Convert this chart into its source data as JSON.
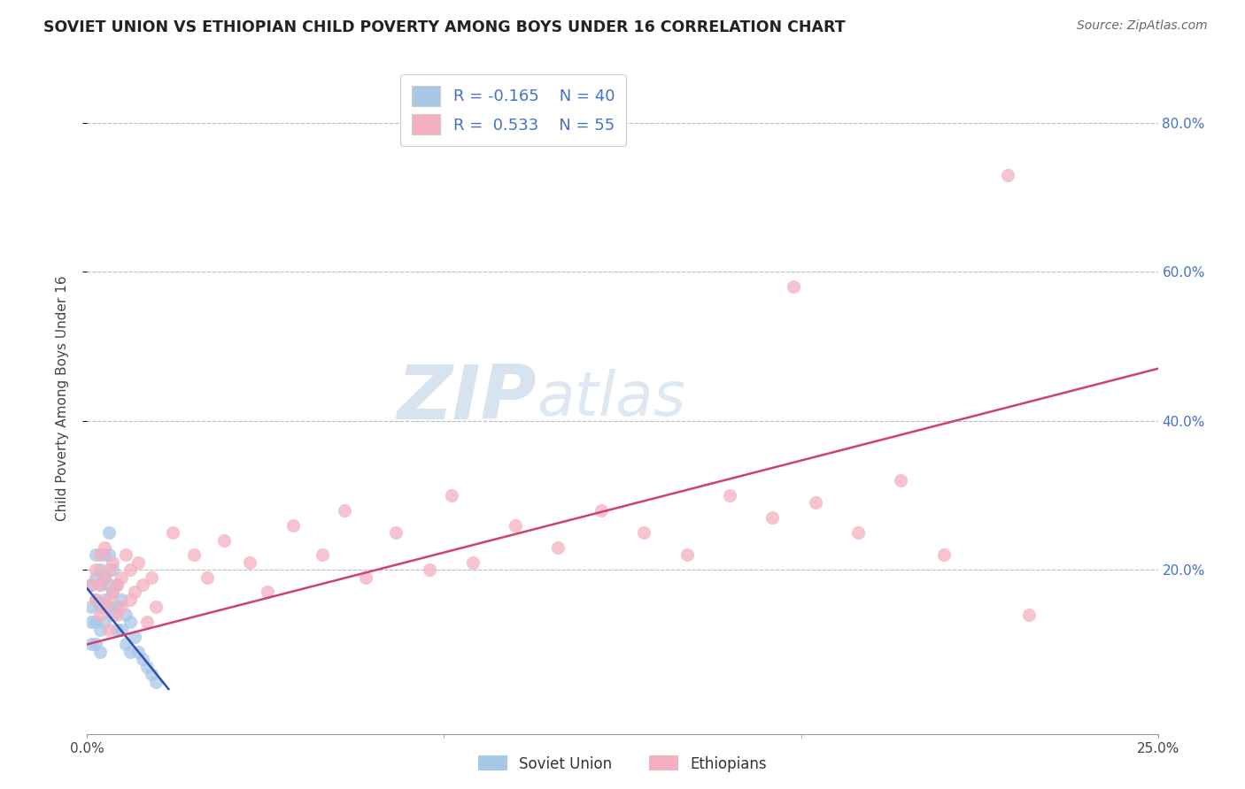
{
  "title": "SOVIET UNION VS ETHIOPIAN CHILD POVERTY AMONG BOYS UNDER 16 CORRELATION CHART",
  "source": "Source: ZipAtlas.com",
  "ylabel": "Child Poverty Among Boys Under 16",
  "xlim": [
    0.0,
    0.25
  ],
  "ylim": [
    -0.02,
    0.88
  ],
  "legend_label1": "Soviet Union",
  "legend_label2": "Ethiopians",
  "color_soviet": "#a8c8e8",
  "color_ethiopian": "#f4b0c0",
  "color_line_soviet": "#3050b0",
  "color_line_ethiopian": "#d04070",
  "ytick_vals": [
    0.2,
    0.4,
    0.6,
    0.8
  ],
  "ytick_labels": [
    "20.0%",
    "40.0%",
    "60.0%",
    "80.0%"
  ],
  "soviet_x": [
    0.001,
    0.001,
    0.001,
    0.001,
    0.002,
    0.002,
    0.002,
    0.002,
    0.002,
    0.003,
    0.003,
    0.003,
    0.003,
    0.003,
    0.004,
    0.004,
    0.004,
    0.004,
    0.005,
    0.005,
    0.005,
    0.005,
    0.006,
    0.006,
    0.006,
    0.007,
    0.007,
    0.007,
    0.008,
    0.008,
    0.009,
    0.009,
    0.01,
    0.01,
    0.011,
    0.012,
    0.013,
    0.014,
    0.015,
    0.016
  ],
  "soviet_y": [
    0.18,
    0.15,
    0.13,
    0.1,
    0.22,
    0.19,
    0.16,
    0.13,
    0.1,
    0.2,
    0.18,
    0.15,
    0.12,
    0.09,
    0.22,
    0.19,
    0.16,
    0.13,
    0.25,
    0.22,
    0.18,
    0.15,
    0.2,
    0.17,
    0.14,
    0.18,
    0.15,
    0.12,
    0.16,
    0.12,
    0.14,
    0.1,
    0.13,
    0.09,
    0.11,
    0.09,
    0.08,
    0.07,
    0.06,
    0.05
  ],
  "ethiopian_x": [
    0.001,
    0.002,
    0.002,
    0.003,
    0.003,
    0.003,
    0.004,
    0.004,
    0.004,
    0.005,
    0.005,
    0.005,
    0.006,
    0.006,
    0.007,
    0.007,
    0.008,
    0.008,
    0.009,
    0.01,
    0.01,
    0.011,
    0.012,
    0.013,
    0.014,
    0.015,
    0.016,
    0.02,
    0.025,
    0.028,
    0.032,
    0.038,
    0.042,
    0.048,
    0.055,
    0.06,
    0.065,
    0.072,
    0.08,
    0.085,
    0.09,
    0.1,
    0.11,
    0.12,
    0.13,
    0.14,
    0.15,
    0.16,
    0.165,
    0.17,
    0.18,
    0.19,
    0.2,
    0.215,
    0.22
  ],
  "ethiopian_y": [
    0.18,
    0.16,
    0.2,
    0.14,
    0.18,
    0.22,
    0.15,
    0.19,
    0.23,
    0.16,
    0.2,
    0.12,
    0.17,
    0.21,
    0.18,
    0.14,
    0.19,
    0.15,
    0.22,
    0.16,
    0.2,
    0.17,
    0.21,
    0.18,
    0.13,
    0.19,
    0.15,
    0.25,
    0.22,
    0.19,
    0.24,
    0.21,
    0.17,
    0.26,
    0.22,
    0.28,
    0.19,
    0.25,
    0.2,
    0.3,
    0.21,
    0.26,
    0.23,
    0.28,
    0.25,
    0.22,
    0.3,
    0.27,
    0.58,
    0.29,
    0.25,
    0.32,
    0.22,
    0.73,
    0.14
  ],
  "soviet_line_x": [
    0.0,
    0.019
  ],
  "soviet_line_y": [
    0.175,
    0.04
  ],
  "ethiopian_line_x": [
    0.0,
    0.25
  ],
  "ethiopian_line_y": [
    0.1,
    0.47
  ]
}
